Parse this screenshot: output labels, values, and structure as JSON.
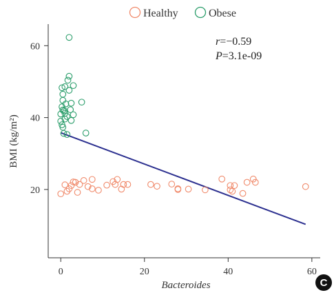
{
  "chart_data": {
    "type": "scatter",
    "xlabel": "Bacteroides",
    "ylabel": "BMI (kg/m²)",
    "xlim": [
      -3,
      62
    ],
    "ylim": [
      1,
      66
    ],
    "xticks": [
      0,
      20,
      40,
      60
    ],
    "yticks": [
      20,
      40,
      60
    ],
    "legend_position": "top-center",
    "grid": false,
    "series": [
      {
        "name": "Healthy",
        "color": "#F08A6B",
        "marker": "open-circle",
        "points": [
          [
            0,
            18.8
          ],
          [
            1,
            21.3
          ],
          [
            1.5,
            19.5
          ],
          [
            2,
            20.2
          ],
          [
            2.5,
            21.1
          ],
          [
            3,
            22.1
          ],
          [
            3.5,
            22.0
          ],
          [
            4,
            19.2
          ],
          [
            4.5,
            21.4
          ],
          [
            5.5,
            22.5
          ],
          [
            6.5,
            20.8
          ],
          [
            7.5,
            22.8
          ],
          [
            7.5,
            20.2
          ],
          [
            9,
            19.8
          ],
          [
            11,
            21.2
          ],
          [
            12.5,
            22.2
          ],
          [
            13,
            21.4
          ],
          [
            13.5,
            22.8
          ],
          [
            14.5,
            20.1
          ],
          [
            15,
            21.4
          ],
          [
            16,
            21.4
          ],
          [
            21.5,
            21.4
          ],
          [
            23,
            20.9
          ],
          [
            26.5,
            21.5
          ],
          [
            28,
            20.2
          ],
          [
            28,
            20.0
          ],
          [
            30.5,
            20.1
          ],
          [
            34.5,
            19.9
          ],
          [
            38.5,
            22.9
          ],
          [
            40.5,
            21.1
          ],
          [
            40.5,
            19.9
          ],
          [
            41,
            19.5
          ],
          [
            41.5,
            21.1
          ],
          [
            43.5,
            18.9
          ],
          [
            44.5,
            22.0
          ],
          [
            46,
            22.9
          ],
          [
            46.5,
            22.0
          ],
          [
            58.5,
            20.8
          ]
        ]
      },
      {
        "name": "Obese",
        "color": "#2A9D6A",
        "marker": "open-circle",
        "points": [
          [
            0,
            39.0
          ],
          [
            0,
            41.0
          ],
          [
            0.3,
            38.0
          ],
          [
            0.3,
            43.0
          ],
          [
            0.3,
            48.3
          ],
          [
            0.5,
            44.8
          ],
          [
            0.5,
            37.3
          ],
          [
            0.5,
            42.1
          ],
          [
            0.5,
            46.5
          ],
          [
            0.7,
            35.6
          ],
          [
            0.8,
            41.9
          ],
          [
            1,
            48.6
          ],
          [
            1,
            39.6
          ],
          [
            1,
            41.2
          ],
          [
            1.2,
            43.8
          ],
          [
            1.5,
            40.3
          ],
          [
            1.5,
            35.3
          ],
          [
            1.7,
            50.4
          ],
          [
            2,
            51.5
          ],
          [
            2,
            47.6
          ],
          [
            2,
            62.3
          ],
          [
            2.3,
            42.2
          ],
          [
            2.5,
            44.0
          ],
          [
            2.5,
            39.2
          ],
          [
            3,
            48.9
          ],
          [
            3,
            40.8
          ],
          [
            5,
            44.3
          ],
          [
            6,
            35.7
          ]
        ]
      }
    ],
    "regression_line": {
      "color": "#2B2F8F",
      "x": [
        0,
        58.5
      ],
      "y": [
        35.8,
        10.3
      ]
    },
    "annotations": {
      "r_label": "r",
      "r_value": "=−0.59",
      "p_label": "P",
      "p_value": "=3.1e-09"
    },
    "panel_label": "C"
  }
}
